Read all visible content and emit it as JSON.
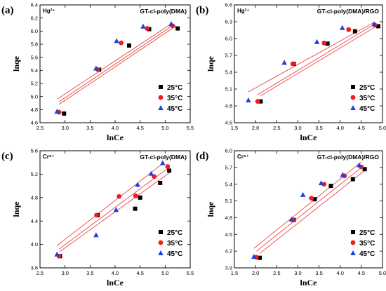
{
  "chart_data": [
    {
      "type": "scatter",
      "panel_label": "(a)",
      "title": "GT-cl-poly(DMA)",
      "ion": "Hg²⁺",
      "xlabel": "lnCe",
      "ylabel": "lnqe",
      "xlim": [
        2.5,
        5.5
      ],
      "ylim": [
        4.6,
        6.4
      ],
      "xticks": [
        "2.5",
        "3.0",
        "3.5",
        "4.0",
        "4.5",
        "5.0",
        "5.5"
      ],
      "yticks": [
        "4.6",
        "4.8",
        "5.0",
        "5.2",
        "5.4",
        "5.6",
        "5.8",
        "6.0",
        "6.2",
        "6.4"
      ],
      "series": [
        {
          "name": "25°C",
          "marker": "square",
          "color": "#000000",
          "points": [
            [
              2.98,
              4.74
            ],
            [
              3.68,
              5.41
            ],
            [
              4.28,
              5.78
            ],
            [
              4.68,
              6.03
            ],
            [
              5.25,
              6.04
            ]
          ],
          "fit": [
            [
              2.88,
              4.88
            ],
            [
              5.22,
              6.08
            ]
          ]
        },
        {
          "name": "35°C",
          "marker": "circle",
          "color": "#ee1c1c",
          "points": [
            [
              2.88,
              4.76
            ],
            [
              3.66,
              5.41
            ],
            [
              4.12,
              5.82
            ],
            [
              4.64,
              6.04
            ],
            [
              5.15,
              6.08
            ]
          ],
          "fit": [
            [
              2.88,
              4.92
            ],
            [
              5.18,
              6.1
            ]
          ]
        },
        {
          "name": "45°C",
          "marker": "triangle",
          "color": "#1f3fe6",
          "points": [
            [
              2.84,
              4.77
            ],
            [
              3.62,
              5.43
            ],
            [
              4.03,
              5.85
            ],
            [
              4.56,
              6.07
            ],
            [
              5.12,
              6.11
            ]
          ],
          "fit": [
            [
              2.84,
              4.96
            ],
            [
              5.14,
              6.12
            ]
          ]
        }
      ],
      "legend": "bottom-right",
      "grid": false
    },
    {
      "type": "scatter",
      "panel_label": "(b)",
      "title": "GT-cl-poly(DMA)/RGO",
      "ion": "Hg²⁺",
      "xlabel": "lnCe",
      "ylabel": "lnqe",
      "xlim": [
        1.5,
        5.0
      ],
      "ylim": [
        4.5,
        6.6
      ],
      "xticks": [
        "1.5",
        "2.0",
        "2.5",
        "3.0",
        "3.5",
        "4.0",
        "4.5",
        "5.0"
      ],
      "yticks": [
        "4.5",
        "4.8",
        "5.1",
        "5.4",
        "5.7",
        "6.0",
        "6.3",
        "6.6"
      ],
      "series": [
        {
          "name": "25°C",
          "marker": "square",
          "color": "#000000",
          "points": [
            [
              2.12,
              4.88
            ],
            [
              2.9,
              5.55
            ],
            [
              3.7,
              5.91
            ],
            [
              4.35,
              6.13
            ],
            [
              4.9,
              6.22
            ]
          ],
          "fit": [
            [
              2.12,
              4.98
            ],
            [
              4.9,
              6.24
            ]
          ]
        },
        {
          "name": "35°C",
          "marker": "circle",
          "color": "#ee1c1c",
          "points": [
            [
              2.05,
              4.88
            ],
            [
              2.88,
              5.55
            ],
            [
              3.62,
              5.92
            ],
            [
              4.2,
              6.16
            ],
            [
              4.82,
              6.24
            ]
          ],
          "fit": [
            [
              2.05,
              5.0
            ],
            [
              4.84,
              6.27
            ]
          ]
        },
        {
          "name": "45°C",
          "marker": "triangle",
          "color": "#1f3fe6",
          "points": [
            [
              1.83,
              4.9
            ],
            [
              2.68,
              5.57
            ],
            [
              3.45,
              5.94
            ],
            [
              4.05,
              6.19
            ],
            [
              4.8,
              6.26
            ]
          ],
          "fit": [
            [
              1.83,
              5.05
            ],
            [
              4.8,
              6.29
            ]
          ]
        }
      ],
      "legend": "bottom-right",
      "grid": false
    },
    {
      "type": "scatter",
      "panel_label": "(c)",
      "title": "GT-cl-poly(DMA)",
      "ion": "Cr⁶⁺",
      "xlabel": "lnCe",
      "ylabel": "lnqe",
      "xlim": [
        2.5,
        5.5
      ],
      "ylim": [
        3.6,
        5.6
      ],
      "xticks": [
        "2.5",
        "3.0",
        "3.5",
        "4.0",
        "4.5",
        "5.0",
        "5.5"
      ],
      "yticks": [
        "3.6",
        "4.0",
        "4.4",
        "4.8",
        "5.2",
        "5.6"
      ],
      "series": [
        {
          "name": "25°C",
          "marker": "square",
          "color": "#000000",
          "points": [
            [
              2.9,
              3.8
            ],
            [
              3.65,
              4.5
            ],
            [
              4.4,
              4.61
            ],
            [
              4.5,
              4.8
            ],
            [
              4.9,
              5.05
            ],
            [
              5.08,
              5.26
            ]
          ],
          "fit": [
            [
              2.9,
              3.88
            ],
            [
              5.08,
              5.22
            ]
          ]
        },
        {
          "name": "35°C",
          "marker": "circle",
          "color": "#ee1c1c",
          "points": [
            [
              2.88,
              3.8
            ],
            [
              3.63,
              4.5
            ],
            [
              4.08,
              4.82
            ],
            [
              4.41,
              4.83
            ],
            [
              4.78,
              5.16
            ],
            [
              5.05,
              5.33
            ]
          ],
          "fit": [
            [
              2.88,
              3.92
            ],
            [
              5.05,
              5.3
            ]
          ]
        },
        {
          "name": "45°C",
          "marker": "triangle",
          "color": "#1f3fe6",
          "points": [
            [
              2.84,
              3.83
            ],
            [
              3.62,
              4.16
            ],
            [
              4.02,
              4.59
            ],
            [
              4.45,
              5.02
            ],
            [
              4.72,
              5.21
            ],
            [
              4.95,
              5.39
            ]
          ],
          "fit": [
            [
              2.84,
              3.98
            ],
            [
              4.98,
              5.4
            ]
          ]
        }
      ],
      "legend": "bottom-right",
      "grid": false
    },
    {
      "type": "scatter",
      "panel_label": "(d)",
      "title": "GT-cl-poly(DMA)/RGO",
      "ion": "Cr⁶⁺",
      "xlabel": "lnCe",
      "ylabel": "lnqe",
      "xlim": [
        1.5,
        5.0
      ],
      "ylim": [
        3.9,
        6.0
      ],
      "xticks": [
        "1.5",
        "2.0",
        "2.5",
        "3.0",
        "3.5",
        "4.0",
        "4.5",
        "5.0"
      ],
      "yticks": [
        "3.9",
        "4.2",
        "4.5",
        "4.8",
        "5.1",
        "5.4",
        "5.7",
        "6.0"
      ],
      "series": [
        {
          "name": "25°C",
          "marker": "square",
          "color": "#000000",
          "points": [
            [
              2.1,
              4.08
            ],
            [
              2.9,
              4.76
            ],
            [
              3.4,
              5.13
            ],
            [
              3.78,
              5.37
            ],
            [
              4.3,
              5.49
            ],
            [
              4.58,
              5.67
            ]
          ],
          "fit": [
            [
              2.1,
              4.16
            ],
            [
              4.6,
              5.66
            ]
          ]
        },
        {
          "name": "35°C",
          "marker": "circle",
          "color": "#ee1c1c",
          "points": [
            [
              2.02,
              4.09
            ],
            [
              2.88,
              4.76
            ],
            [
              3.32,
              5.15
            ],
            [
              3.62,
              5.4
            ],
            [
              4.1,
              5.55
            ],
            [
              4.5,
              5.71
            ]
          ],
          "fit": [
            [
              2.02,
              4.2
            ],
            [
              4.55,
              5.73
            ]
          ]
        },
        {
          "name": "45°C",
          "marker": "triangle",
          "color": "#1f3fe6",
          "points": [
            [
              1.96,
              4.1
            ],
            [
              2.85,
              4.77
            ],
            [
              3.12,
              5.21
            ],
            [
              3.55,
              5.42
            ],
            [
              4.06,
              5.57
            ],
            [
              4.45,
              5.74
            ]
          ],
          "fit": [
            [
              1.96,
              4.25
            ],
            [
              4.5,
              5.8
            ]
          ]
        }
      ],
      "legend": "bottom-right",
      "grid": false
    }
  ]
}
